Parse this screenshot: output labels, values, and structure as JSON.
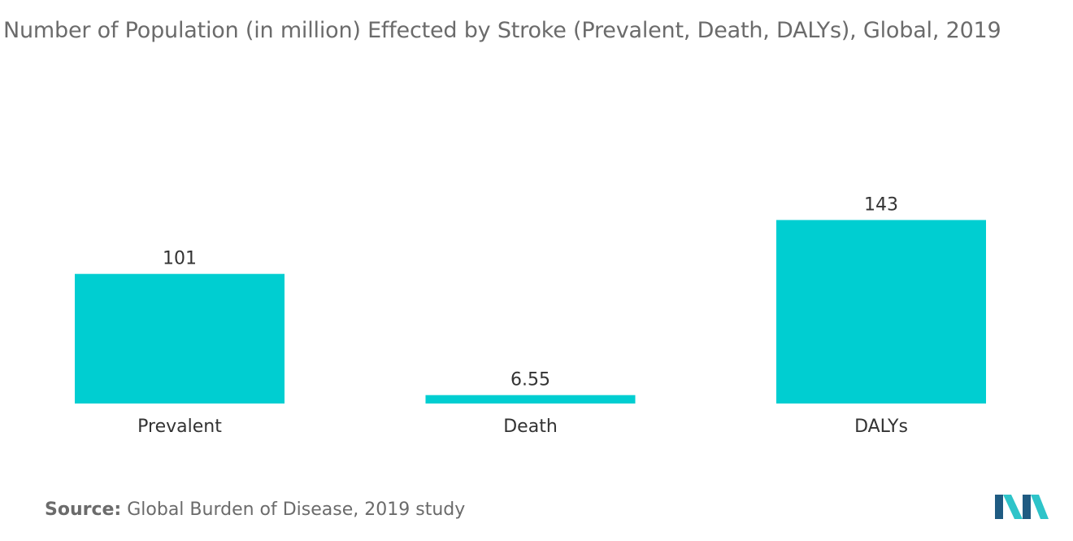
{
  "chart_title": "Number of Population (in million)  Effected by Stroke (Prevalent, Death, DALYs), Global, 2019",
  "source": {
    "label": "Source:",
    "text": "Global Burden of Disease, 2019 study"
  },
  "colors": {
    "bar": "#00ced1",
    "text": "#333333",
    "title": "#6b6b6b",
    "logo_dark": "#1f5b82",
    "logo_light": "#2ec4c9"
  },
  "logo": {
    "icon": "mordor-intelligence-logo-icon"
  },
  "chart_data": {
    "type": "bar",
    "title": "Number of Population (in million)  Effected by Stroke (Prevalent, Death, DALYs), Global, 2019",
    "categories": [
      "Prevalent",
      "Death",
      "DALYs"
    ],
    "values": [
      101,
      6.55,
      143
    ],
    "value_labels": [
      "101",
      "6.55",
      "143"
    ],
    "xlabel": "",
    "ylabel": "",
    "ylim": [
      0,
      150
    ],
    "grid": false,
    "legend": "none"
  }
}
